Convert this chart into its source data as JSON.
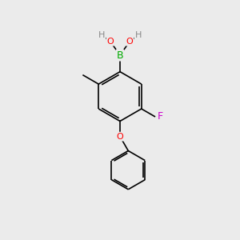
{
  "background_color": "#ebebeb",
  "bond_color": "#000000",
  "bond_width": 1.2,
  "atom_colors": {
    "B": "#00aa00",
    "O": "#ff0000",
    "F": "#cc00cc",
    "H": "#888888",
    "C": "#000000"
  },
  "figsize": [
    3.0,
    3.0
  ],
  "dpi": 100
}
